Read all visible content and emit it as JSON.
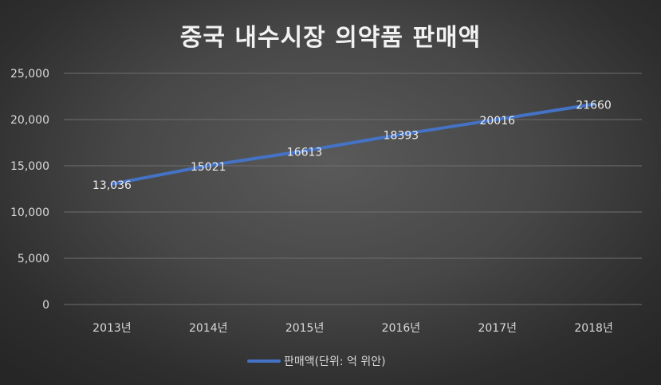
{
  "chart_data": {
    "type": "line",
    "title": "중국 내수시장 의약품 판매액",
    "categories": [
      "2013년",
      "2014년",
      "2015년",
      "2016년",
      "2017년",
      "2018년"
    ],
    "series": [
      {
        "name": "판매액(단위: 억 위안)",
        "values": [
          13036,
          15021,
          16613,
          18393,
          20016,
          21660
        ],
        "labels": [
          "13,036",
          "15021",
          "16613",
          "18393",
          "20016",
          "21660"
        ],
        "color": "#4472c4"
      }
    ],
    "yticks": [
      "0",
      "5,000",
      "10,000",
      "15,000",
      "20,000",
      "25,000"
    ],
    "ylim": [
      0,
      25000
    ],
    "grid": true,
    "legend": "bottom"
  },
  "colors": {
    "grid": "#6e6e6e",
    "text": "#d9d9d9",
    "title": "#f2f2f2",
    "line": "#4472c4"
  }
}
